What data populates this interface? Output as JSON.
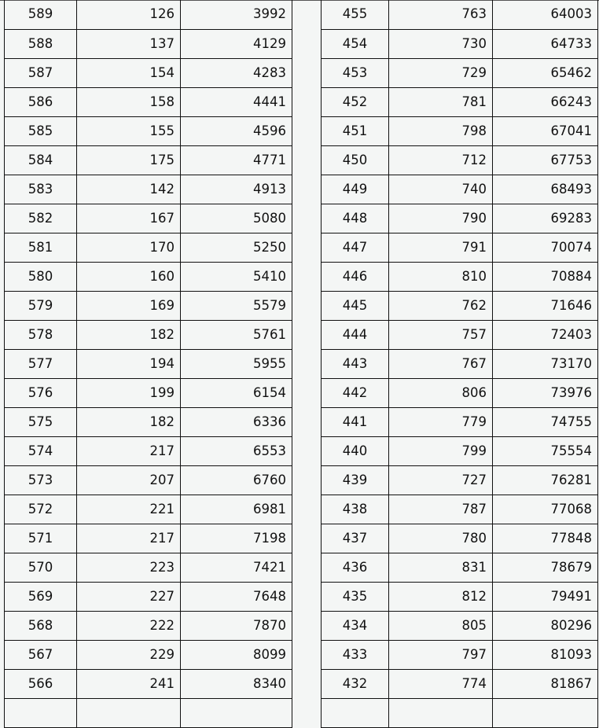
{
  "left_table": {
    "rows": [
      [
        "589",
        "126",
        "3992"
      ],
      [
        "588",
        "137",
        "4129"
      ],
      [
        "587",
        "154",
        "4283"
      ],
      [
        "586",
        "158",
        "4441"
      ],
      [
        "585",
        "155",
        "4596"
      ],
      [
        "584",
        "175",
        "4771"
      ],
      [
        "583",
        "142",
        "4913"
      ],
      [
        "582",
        "167",
        "5080"
      ],
      [
        "581",
        "170",
        "5250"
      ],
      [
        "580",
        "160",
        "5410"
      ],
      [
        "579",
        "169",
        "5579"
      ],
      [
        "578",
        "182",
        "5761"
      ],
      [
        "577",
        "194",
        "5955"
      ],
      [
        "576",
        "199",
        "6154"
      ],
      [
        "575",
        "182",
        "6336"
      ],
      [
        "574",
        "217",
        "6553"
      ],
      [
        "573",
        "207",
        "6760"
      ],
      [
        "572",
        "221",
        "6981"
      ],
      [
        "571",
        "217",
        "7198"
      ],
      [
        "570",
        "223",
        "7421"
      ],
      [
        "569",
        "227",
        "7648"
      ],
      [
        "568",
        "222",
        "7870"
      ],
      [
        "567",
        "229",
        "8099"
      ],
      [
        "566",
        "241",
        "8340"
      ]
    ]
  },
  "right_table": {
    "rows": [
      [
        "455",
        "763",
        "64003"
      ],
      [
        "454",
        "730",
        "64733"
      ],
      [
        "453",
        "729",
        "65462"
      ],
      [
        "452",
        "781",
        "66243"
      ],
      [
        "451",
        "798",
        "67041"
      ],
      [
        "450",
        "712",
        "67753"
      ],
      [
        "449",
        "740",
        "68493"
      ],
      [
        "448",
        "790",
        "69283"
      ],
      [
        "447",
        "791",
        "70074"
      ],
      [
        "446",
        "810",
        "70884"
      ],
      [
        "445",
        "762",
        "71646"
      ],
      [
        "444",
        "757",
        "72403"
      ],
      [
        "443",
        "767",
        "73170"
      ],
      [
        "442",
        "806",
        "73976"
      ],
      [
        "441",
        "779",
        "74755"
      ],
      [
        "440",
        "799",
        "75554"
      ],
      [
        "439",
        "727",
        "76281"
      ],
      [
        "438",
        "787",
        "77068"
      ],
      [
        "437",
        "780",
        "77848"
      ],
      [
        "436",
        "831",
        "78679"
      ],
      [
        "435",
        "812",
        "79491"
      ],
      [
        "434",
        "805",
        "80296"
      ],
      [
        "433",
        "797",
        "81093"
      ],
      [
        "432",
        "774",
        "81867"
      ]
    ]
  }
}
